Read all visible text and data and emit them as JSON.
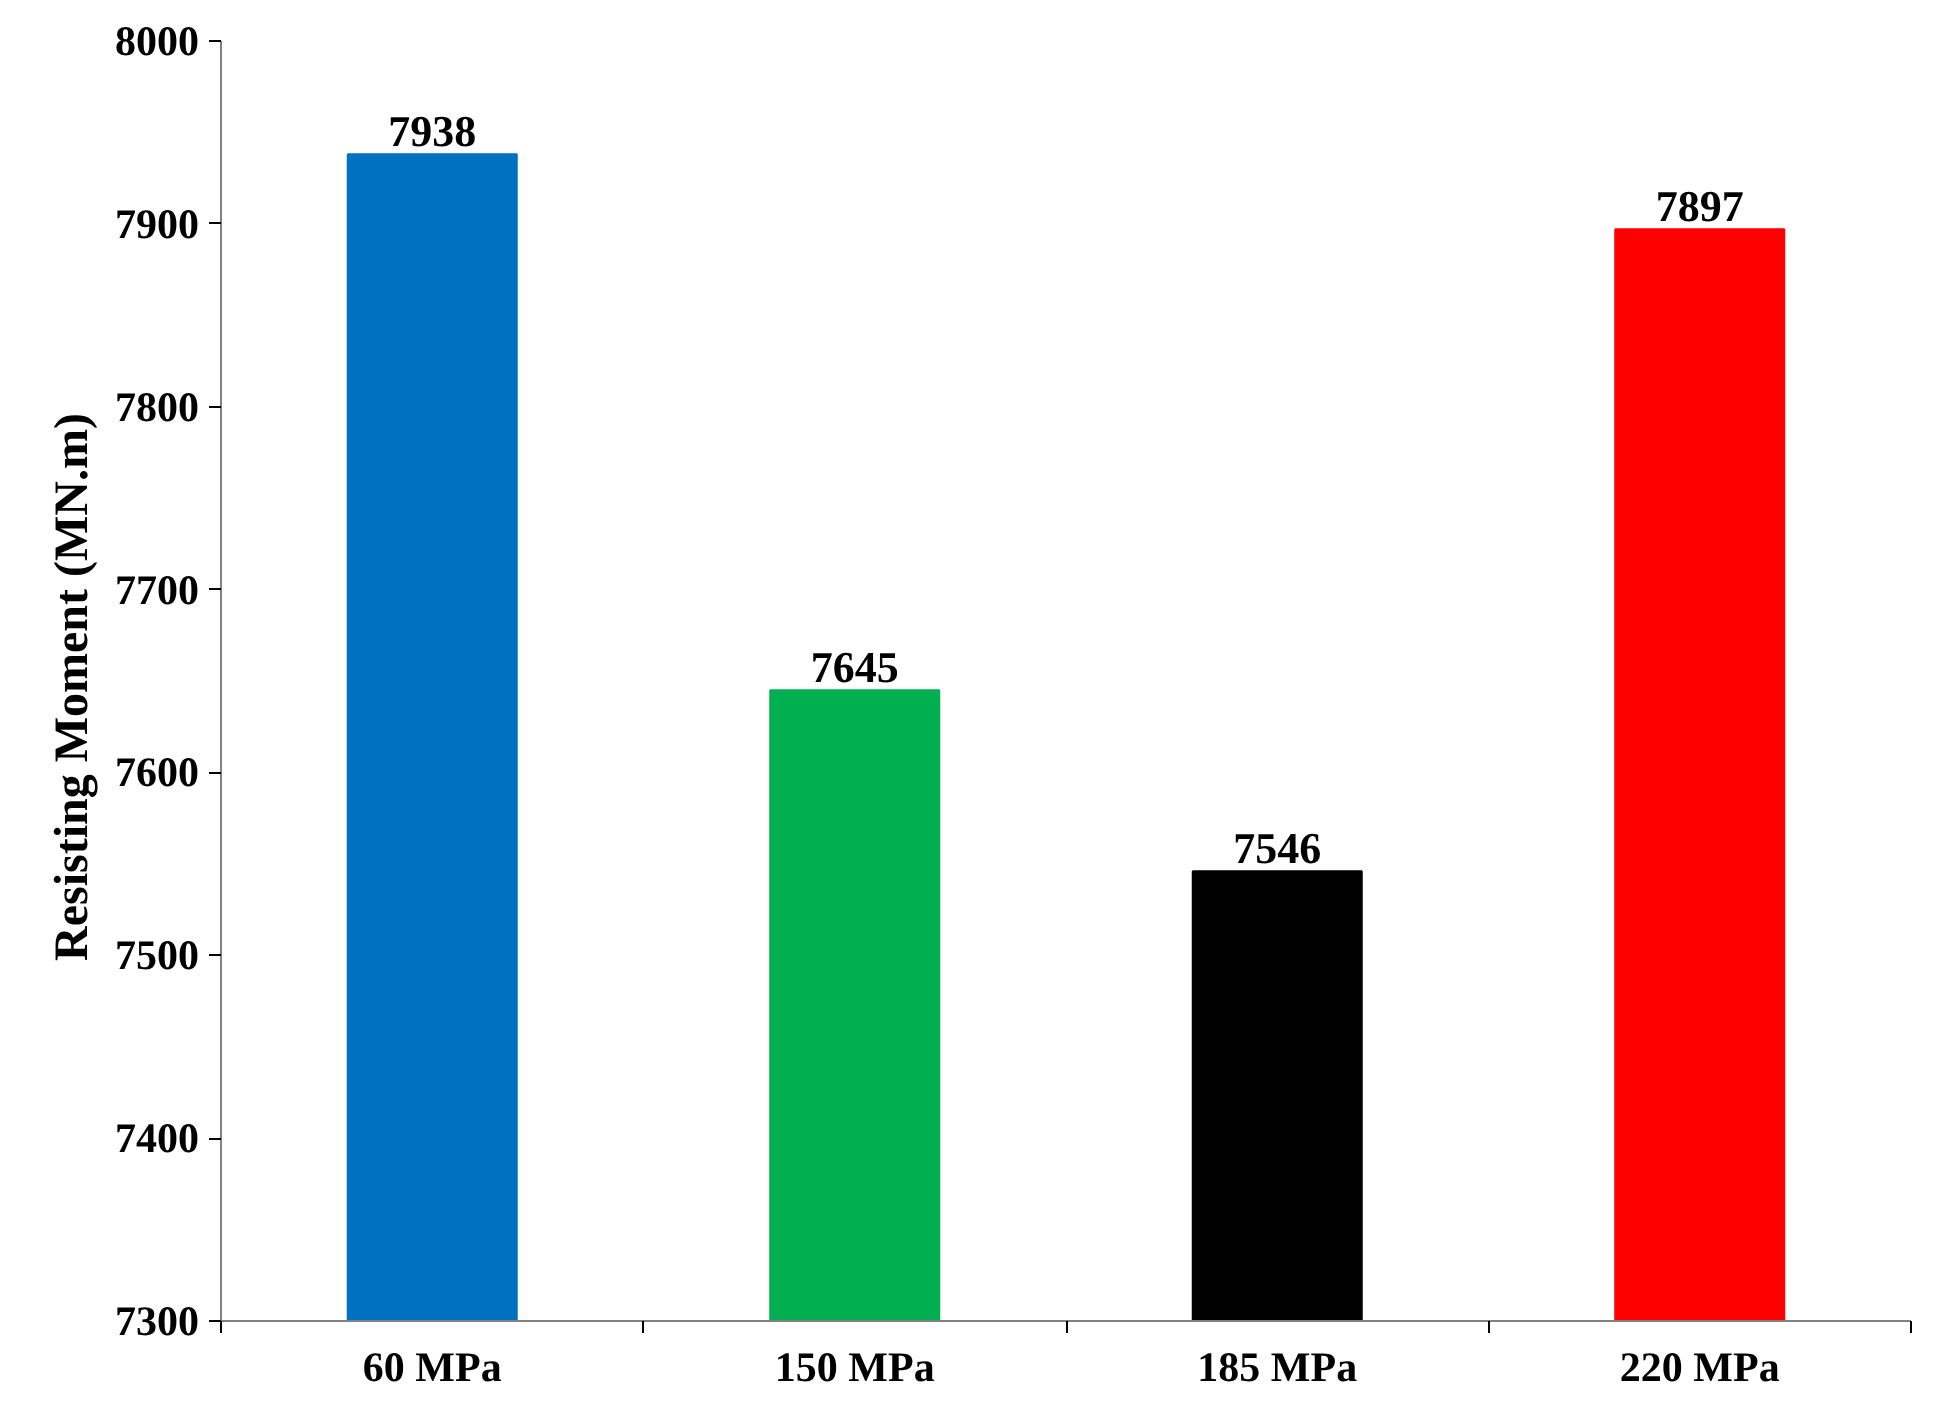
{
  "chart_data": {
    "type": "bar",
    "ylabel": "Resisting Moment  (MN.m)",
    "categories": [
      "60 MPa",
      "150 MPa",
      "185 MPa",
      "220 MPa"
    ],
    "values": [
      7938,
      7645,
      7546,
      7897
    ],
    "colors": [
      "#0070c0",
      "#00b050",
      "#000000",
      "#ff0000"
    ],
    "ylim": [
      7300,
      8000
    ],
    "yticks": [
      7300,
      7400,
      7500,
      7600,
      7700,
      7800,
      7900,
      8000
    ],
    "data_labels": true,
    "grid": false
  }
}
